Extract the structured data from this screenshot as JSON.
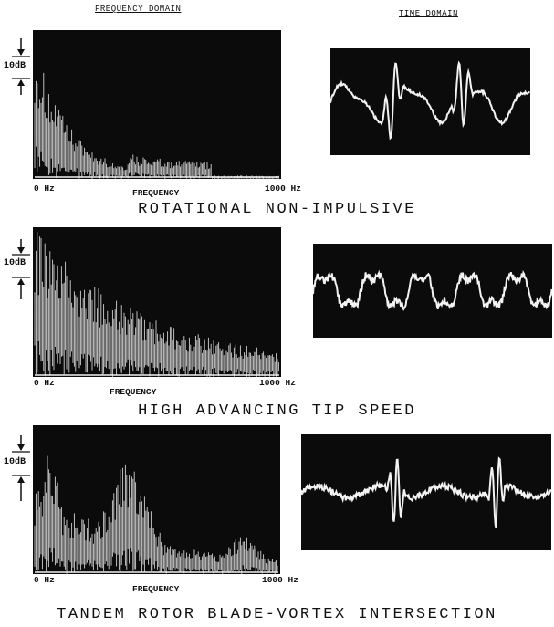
{
  "headers": {
    "frequency_domain": "FREQUENCY DOMAIN",
    "time_domain": "TIME DOMAIN"
  },
  "colors": {
    "scope_bg": "#0b0b0b",
    "trace": "#f2f2f2",
    "ink": "#111111"
  },
  "panels": [
    {
      "title": "ROTATIONAL NON-IMPULSIVE",
      "scale_label": "10dB",
      "freq_start": "0 Hz",
      "freq_end": "1000 Hz",
      "freq_label": "FREQUENCY",
      "spectrum_profile": "rotational"
    },
    {
      "title": "HIGH ADVANCING TIP SPEED",
      "scale_label": "10dB",
      "freq_start": "0 Hz",
      "freq_end": "1000 Hz",
      "freq_label": "FREQUENCY",
      "spectrum_profile": "hats"
    },
    {
      "title": "TANDEM ROTOR BLADE-VORTEX INTERSECTION",
      "scale_label": "10dB",
      "freq_start": "0 Hz",
      "freq_end": "1000 Hz",
      "freq_label": "FREQUENCY",
      "spectrum_profile": "bvi"
    }
  ]
}
